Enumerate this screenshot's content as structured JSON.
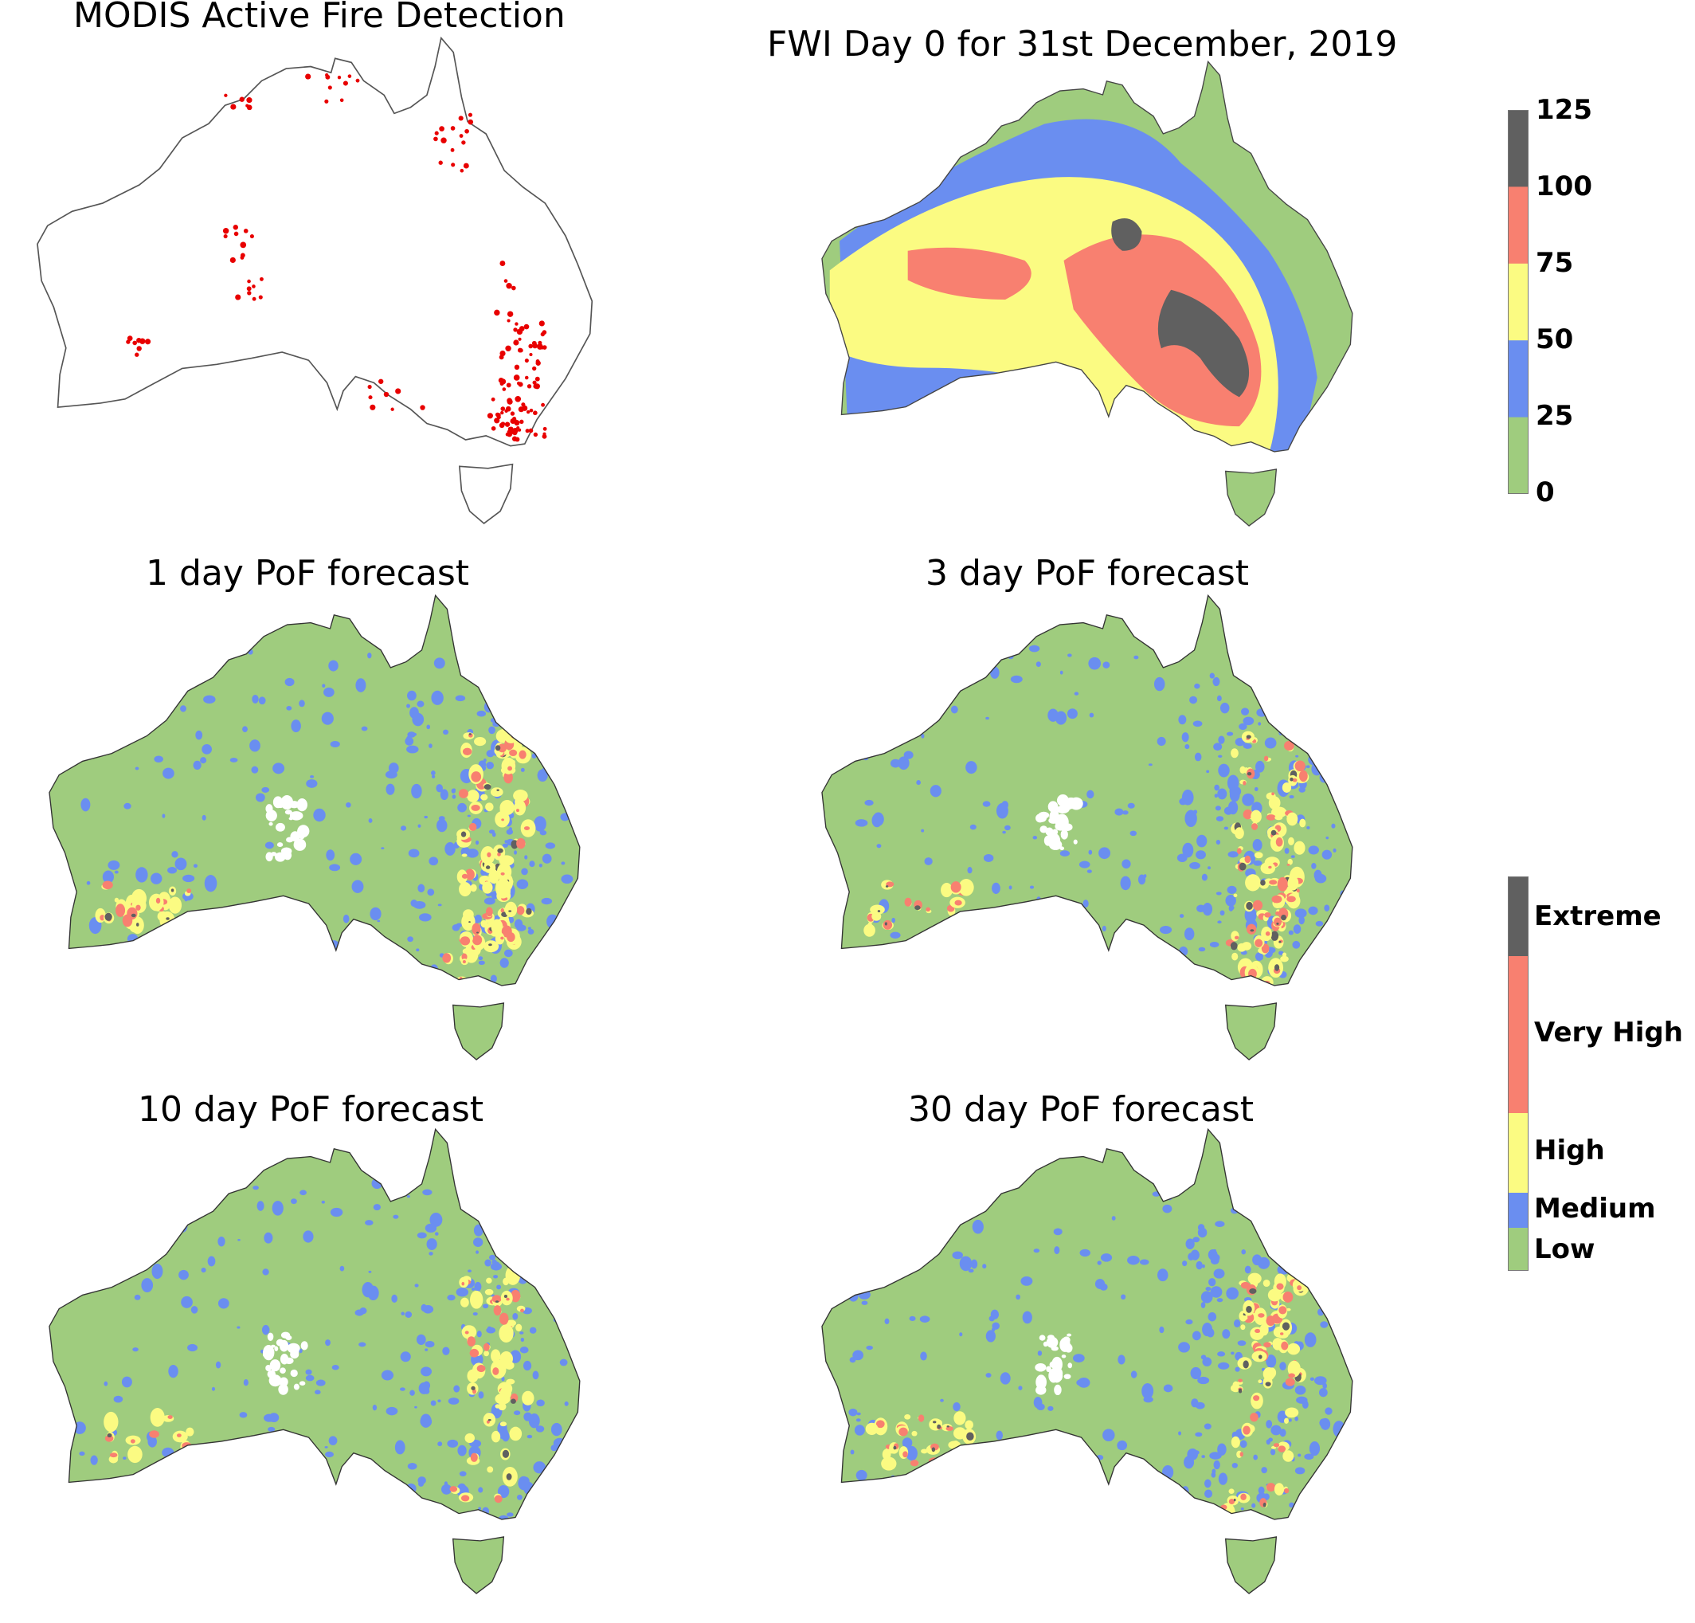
{
  "panels": {
    "modis": {
      "title": "MODIS Active Fire Detection"
    },
    "fwi": {
      "title": "FWI Day 0 for 31st December, 2019"
    },
    "pof1": {
      "title": "1 day PoF forecast"
    },
    "pof3": {
      "title": "3 day PoF forecast"
    },
    "pof10": {
      "title": "10 day PoF forecast"
    },
    "pof30": {
      "title": "30 day PoF forecast"
    }
  },
  "fwi_colorbar": {
    "ticks": [
      "125",
      "100",
      "75",
      "50",
      "25",
      "0"
    ],
    "colors": [
      "#606060",
      "#f88070",
      "#fbfb82",
      "#6a8ef0",
      "#9fcc7e"
    ]
  },
  "pof_colorbar": {
    "labels": [
      "Extreme",
      "Very High",
      "High",
      "Medium",
      "Low"
    ],
    "colors": [
      "#606060",
      "#f88070",
      "#fbfb82",
      "#6a8ef0",
      "#9fcc7e"
    ]
  },
  "colors": {
    "land_low": "#9fcc7e",
    "fire_point": "#e80000",
    "outline": "#555555"
  }
}
